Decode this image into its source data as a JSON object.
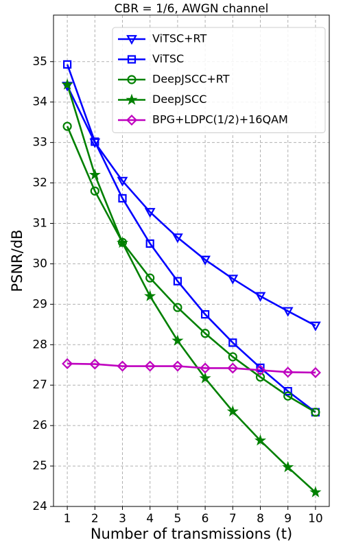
{
  "chart_data": {
    "type": "line",
    "title": "CBR = 1/6, AWGN channel",
    "xlabel": "Number of transmissions (t)",
    "ylabel": "PSNR/dB",
    "x": [
      1,
      2,
      3,
      4,
      5,
      6,
      7,
      8,
      9,
      10
    ],
    "xlim": [
      0.5,
      10.5
    ],
    "xticks": [
      1,
      2,
      3,
      4,
      5,
      6,
      7,
      8,
      9,
      10
    ],
    "ylim": [
      24,
      36.15
    ],
    "yticks": [
      24,
      25,
      26,
      27,
      28,
      29,
      30,
      31,
      32,
      33,
      34,
      35
    ],
    "grid": true,
    "legend": "upper right",
    "series": [
      {
        "name": "ViTSC+RT",
        "color": "#0000ff",
        "marker": "triangle-down",
        "values": [
          34.4,
          33.0,
          32.05,
          31.28,
          30.65,
          30.1,
          29.63,
          29.2,
          28.83,
          28.47
        ]
      },
      {
        "name": "ViTSC",
        "color": "#0000ff",
        "marker": "square",
        "values": [
          34.93,
          33.02,
          31.62,
          30.5,
          29.57,
          28.75,
          28.05,
          27.43,
          26.85,
          26.33
        ]
      },
      {
        "name": "DeepJSCC+RT",
        "color": "#008000",
        "marker": "circle",
        "values": [
          33.4,
          31.8,
          30.53,
          29.65,
          28.92,
          28.28,
          27.7,
          27.2,
          26.73,
          26.33
        ]
      },
      {
        "name": "DeepJSCC",
        "color": "#008000",
        "marker": "star",
        "values": [
          34.43,
          32.2,
          30.52,
          29.2,
          28.1,
          27.17,
          26.35,
          25.63,
          24.97,
          24.35
        ]
      },
      {
        "name": "BPG+LDPC(1/2)+16QAM",
        "color": "#bf00bf",
        "marker": "diamond",
        "values": [
          27.53,
          27.52,
          27.47,
          27.47,
          27.47,
          27.42,
          27.42,
          27.37,
          27.32,
          27.31
        ]
      }
    ]
  }
}
